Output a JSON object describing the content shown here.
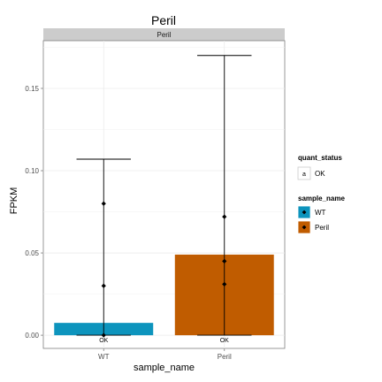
{
  "chart_data": {
    "type": "bar",
    "title": "Peril",
    "facet_label": "Peril",
    "xlabel": "sample_name",
    "ylabel": "FPKM",
    "categories": [
      "WT",
      "Peril"
    ],
    "values": [
      0.0075,
      0.049
    ],
    "error_high": [
      0.107,
      0.17
    ],
    "error_low": [
      0.0,
      0.0
    ],
    "points": [
      [
        0.08,
        0.03,
        0.0
      ],
      [
        0.072,
        0.045,
        0.031
      ]
    ],
    "bar_labels": [
      "OK",
      "OK"
    ],
    "ylim": [
      -0.008,
      0.179
    ],
    "yticks": [
      0.0,
      0.05,
      0.1,
      0.15
    ],
    "ytick_labels": [
      "0.00",
      "0.05",
      "0.10",
      "0.15"
    ],
    "grid": true,
    "legend_position": "right",
    "legends": [
      {
        "title": "quant_status",
        "entries": [
          {
            "label": "OK",
            "symbol": "a"
          }
        ]
      },
      {
        "title": "sample_name",
        "entries": [
          {
            "label": "WT",
            "color": "#0d94bd"
          },
          {
            "label": "Peril",
            "color": "#c05c00"
          }
        ]
      }
    ],
    "colors": {
      "WT": "#0d94bd",
      "Peril": "#c05c00"
    }
  }
}
